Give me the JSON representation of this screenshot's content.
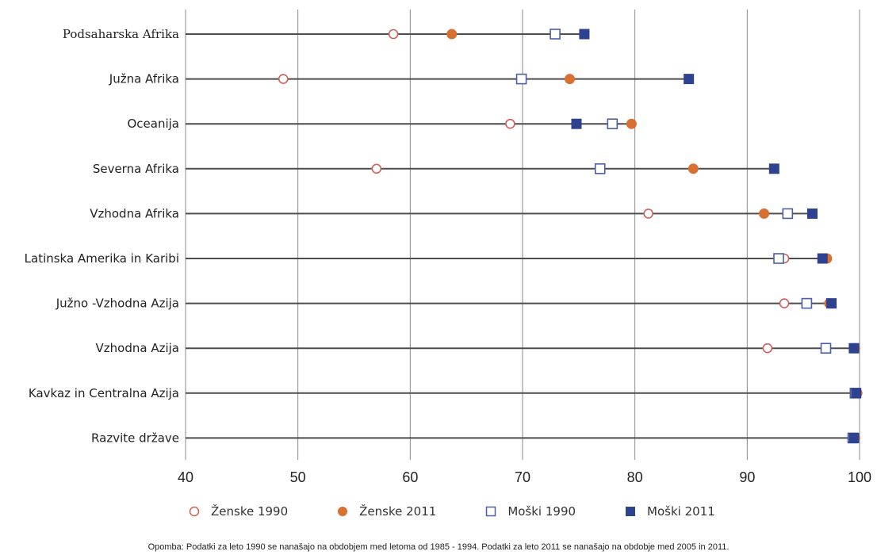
{
  "chart_data": {
    "type": "scatter",
    "orientation": "horizontal-dot-plot",
    "categories": [
      "Podsaharska  Afrika",
      "Južna Afrika",
      "Oceanija",
      "Severna Afrika",
      "Vzhodna Afrika",
      "Latinska Amerika in Karibi",
      "Južno -Vzhodna Azija",
      "Vzhodna Azija",
      "Kavkaz in Centralna Azija",
      "Razvite države"
    ],
    "series": [
      {
        "name": "Ženske 1990",
        "marker": "circle-open",
        "color": "#d0605a",
        "values": [
          58.5,
          48.7,
          68.9,
          57.0,
          81.2,
          93.3,
          93.3,
          91.8,
          99.7,
          99.5
        ]
      },
      {
        "name": "Ženske 2011",
        "marker": "circle-filled",
        "color": "#d87031",
        "values": [
          63.7,
          74.2,
          79.7,
          85.2,
          91.5,
          97.1,
          97.3,
          99.6,
          99.8,
          99.6
        ]
      },
      {
        "name": "Moški 1990",
        "marker": "square-open",
        "color": "#4a5fa8",
        "values": [
          72.9,
          69.9,
          78.0,
          76.9,
          93.6,
          92.8,
          95.3,
          97.0,
          99.6,
          99.4
        ]
      },
      {
        "name": "Moški 2011",
        "marker": "square-filled",
        "color": "#2e4390",
        "values": [
          75.5,
          84.8,
          74.8,
          92.4,
          95.8,
          96.7,
          97.5,
          99.5,
          99.7,
          99.5
        ]
      }
    ],
    "xlim": [
      40,
      100
    ],
    "xticks": [
      40,
      50,
      60,
      70,
      80,
      90,
      100
    ],
    "xtick_labels": [
      "40",
      "50",
      "60",
      "70",
      "80",
      "90",
      "100"
    ],
    "grid": "vertical",
    "legend_position": "bottom",
    "note": "Opomba: Podatki za leto 1990 se nanašajo na obdobjem med letoma od 1985 - 1994. Podatki za leto 2011 se nanašajo na obdobje med 2005 in 2011."
  }
}
